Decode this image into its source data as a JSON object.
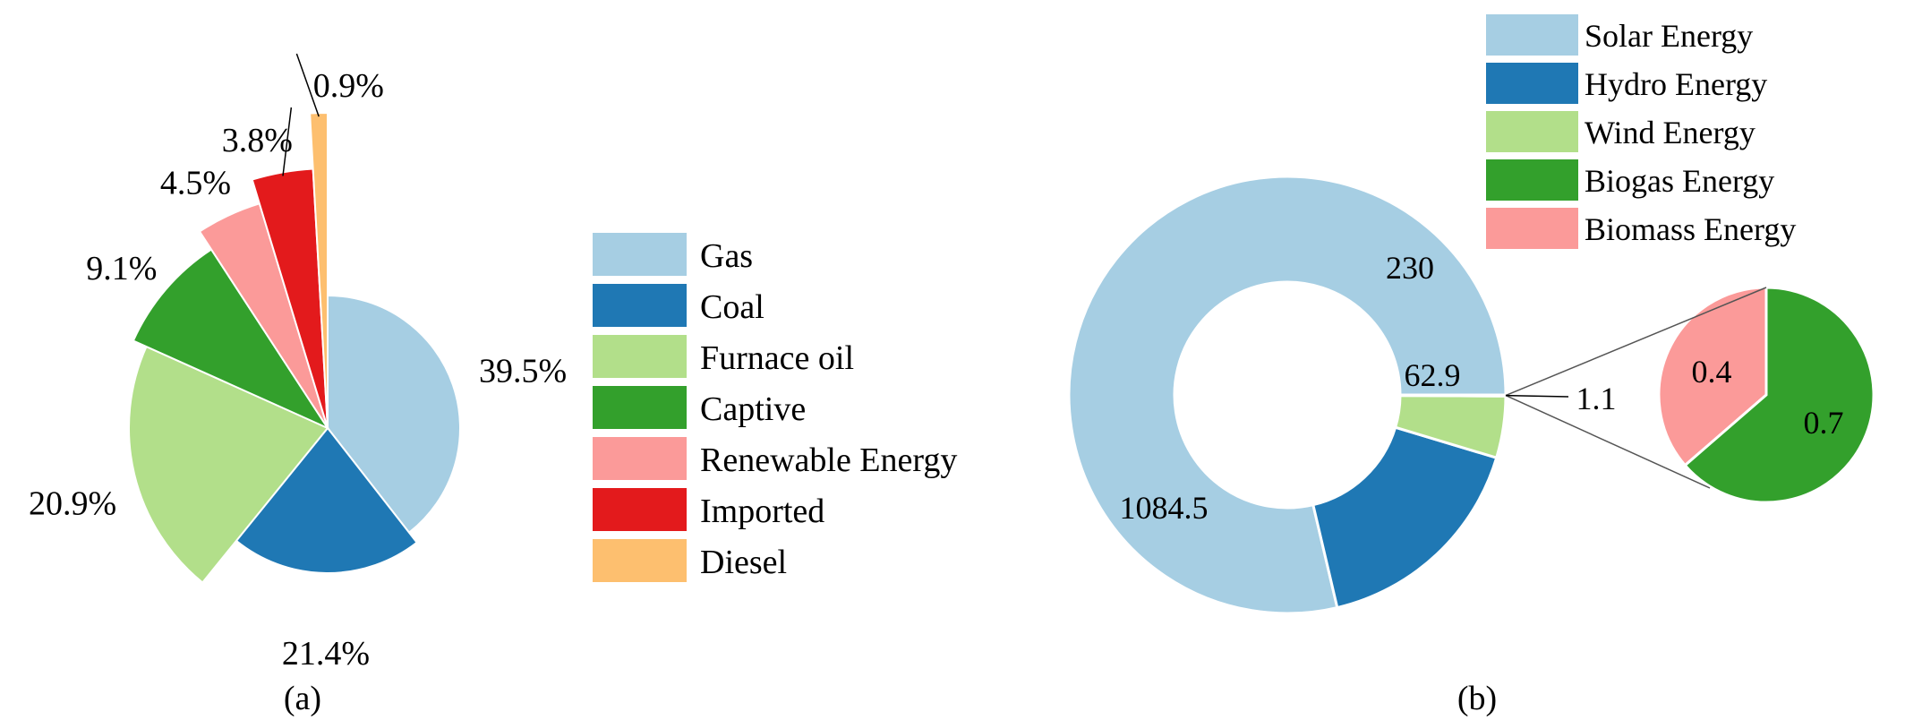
{
  "chart_data": [
    {
      "type": "pie",
      "style": "rose",
      "caption": "(a)",
      "categories": [
        "Gas",
        "Coal",
        "Furnace oil",
        "Captive",
        "Renewable Energy",
        "Imported",
        "Diesel"
      ],
      "values": [
        39.5,
        21.4,
        20.9,
        9.1,
        4.5,
        3.8,
        0.9
      ],
      "value_labels": [
        "39.5%",
        "21.4%",
        "20.9%",
        "9.1%",
        "4.5%",
        "3.8%",
        "0.9%"
      ],
      "colors": [
        "#a6cee3",
        "#1f78b4",
        "#b2df8a",
        "#33a02c",
        "#fb9a99",
        "#e31a1c",
        "#fdbf6f"
      ],
      "legend": "right"
    },
    {
      "type": "pie",
      "style": "donut-with-pie-breakout",
      "caption": "(b)",
      "categories": [
        "Solar Energy",
        "Hydro Energy",
        "Wind Energy",
        "Biogas Energy",
        "Biomass Energy"
      ],
      "colors": [
        "#a6cee3",
        "#1f78b4",
        "#b2df8a",
        "#33a02c",
        "#fb9a99"
      ],
      "donut": {
        "values": [
          1084.5,
          230,
          62.9,
          1.1
        ],
        "labels": [
          "1084.5",
          "230",
          "62.9",
          "1.1"
        ],
        "colors": [
          "#a6cee3",
          "#1f78b4",
          "#b2df8a",
          "#ffffff"
        ]
      },
      "breakout": {
        "values": [
          0.7,
          0.4
        ],
        "labels": [
          "0.7",
          "0.4"
        ],
        "colors": [
          "#33a02c",
          "#fb9a99"
        ]
      },
      "legend": "top-right"
    }
  ]
}
